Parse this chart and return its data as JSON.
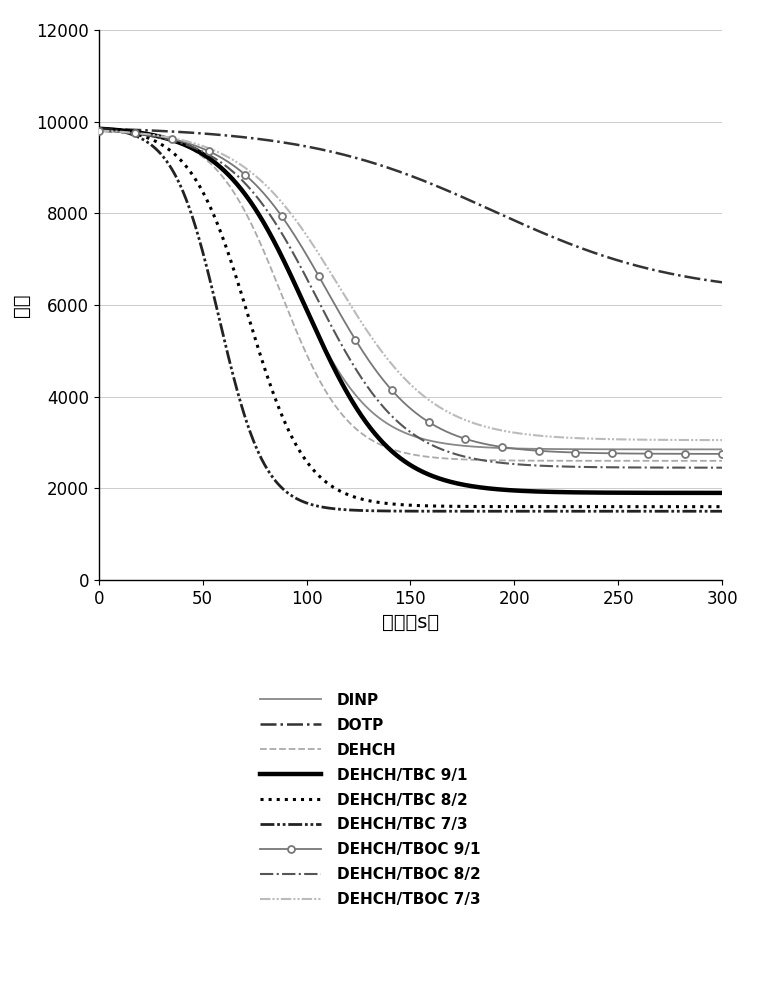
{
  "title": "",
  "xlabel": "时间（s）",
  "ylabel": "振幅",
  "xlim": [
    0,
    300
  ],
  "ylim": [
    0,
    12000
  ],
  "yticks": [
    0,
    2000,
    4000,
    6000,
    8000,
    10000,
    12000
  ],
  "xticks": [
    0,
    50,
    100,
    150,
    200,
    250,
    300
  ],
  "figsize": [
    7.6,
    10.0
  ],
  "dpi": 100,
  "series": [
    {
      "label": "DINP",
      "color": "#888888",
      "linestyle": "solid",
      "linewidth": 1.3,
      "marker": null,
      "t_mid": 95,
      "scale": 18,
      "floor": 2850,
      "peak": 9850
    },
    {
      "label": "DOTP",
      "color": "#333333",
      "linestyle": "dashdot",
      "linewidth": 1.8,
      "marker": null,
      "t_mid": 190,
      "scale": 45,
      "floor": 6200,
      "peak": 9900
    },
    {
      "label": "DEHCH",
      "color": "#aaaaaa",
      "linestyle": "dashed",
      "linewidth": 1.3,
      "marker": null,
      "t_mid": 88,
      "scale": 16,
      "floor": 2600,
      "peak": 9850
    },
    {
      "label": "DEHCH/TBC 9/1",
      "color": "#000000",
      "linestyle": "solid",
      "linewidth": 3.2,
      "marker": null,
      "t_mid": 100,
      "scale": 20,
      "floor": 1900,
      "peak": 9900
    },
    {
      "label": "DEHCH/TBC 8/2",
      "color": "#000000",
      "linestyle": "dotted",
      "linewidth": 2.2,
      "marker": null,
      "t_mid": 72,
      "scale": 14,
      "floor": 1600,
      "peak": 9900
    },
    {
      "label": "DEHCH/TBC 7/3",
      "color": "#222222",
      "linestyle": "dashdotdotted",
      "linewidth": 2.0,
      "marker": null,
      "t_mid": 58,
      "scale": 11,
      "floor": 1500,
      "peak": 9900
    },
    {
      "label": "DEHCH/TBOC 9/1",
      "color": "#777777",
      "linestyle": "solid",
      "linewidth": 1.3,
      "marker": "o",
      "t_mid": 110,
      "scale": 22,
      "floor": 2750,
      "peak": 9850
    },
    {
      "label": "DEHCH/TBOC 8/2",
      "color": "#555555",
      "linestyle": "dashdot",
      "linewidth": 1.5,
      "marker": null,
      "t_mid": 105,
      "scale": 21,
      "floor": 2450,
      "peak": 9850
    },
    {
      "label": "DEHCH/TBOC 7/3",
      "color": "#bbbbbb",
      "linestyle": "dashdotdotted",
      "linewidth": 1.5,
      "marker": null,
      "t_mid": 115,
      "scale": 23,
      "floor": 3050,
      "peak": 9850
    }
  ]
}
